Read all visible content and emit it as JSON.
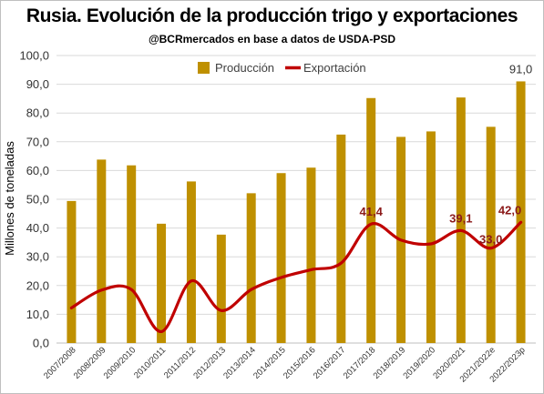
{
  "chart_data": {
    "type": "bar",
    "title": "Rusia. Evolución de la producción trigo y exportaciones",
    "subtitle": "@BCRmercados  en base a datos de USDA-PSD",
    "ylabel": "Millones de toneladas",
    "xlabel": "",
    "ylim": [
      0,
      100
    ],
    "y_ticks": [
      "0,0",
      "10,0",
      "20,0",
      "30,0",
      "40,0",
      "50,0",
      "60,0",
      "70,0",
      "80,0",
      "90,0",
      "100,0"
    ],
    "grid": true,
    "legend_position": "top",
    "categories": [
      "2007/2008",
      "2008/2009",
      "2009/2010",
      "2010/2011",
      "2011/2012",
      "2012/2013",
      "2013/2014",
      "2014/2015",
      "2015/2016",
      "2016/2017",
      "2017/2018",
      "2018/2019",
      "2019/2020",
      "2020/2021",
      "2021/2022e",
      "2022/2023p"
    ],
    "series": [
      {
        "name": "Producción",
        "type": "bar",
        "color": "#bf9000",
        "values": [
          49.4,
          63.8,
          61.8,
          41.5,
          56.2,
          37.7,
          52.1,
          59.1,
          61.0,
          72.5,
          85.2,
          71.7,
          73.6,
          85.4,
          75.2,
          91.0
        ]
      },
      {
        "name": "Exportación",
        "type": "line",
        "smooth": true,
        "color": "#c00000",
        "values": [
          12.2,
          18.4,
          18.6,
          4.0,
          21.6,
          11.3,
          18.6,
          22.8,
          25.5,
          27.8,
          41.4,
          35.8,
          34.5,
          39.1,
          33.0,
          42.0
        ]
      }
    ],
    "data_labels": [
      {
        "series": "Exportación",
        "category": "2017/2018",
        "text": "41,4",
        "style": "red"
      },
      {
        "series": "Exportación",
        "category": "2020/2021",
        "text": "39,1",
        "style": "red"
      },
      {
        "series": "Exportación",
        "category": "2021/2022e",
        "text": "33,0",
        "style": "red"
      },
      {
        "series": "Exportación",
        "category": "2022/2023p",
        "text": "42,0",
        "style": "red"
      },
      {
        "series": "Producción",
        "category": "2022/2023p",
        "text": "91,0",
        "style": "dark"
      }
    ]
  }
}
